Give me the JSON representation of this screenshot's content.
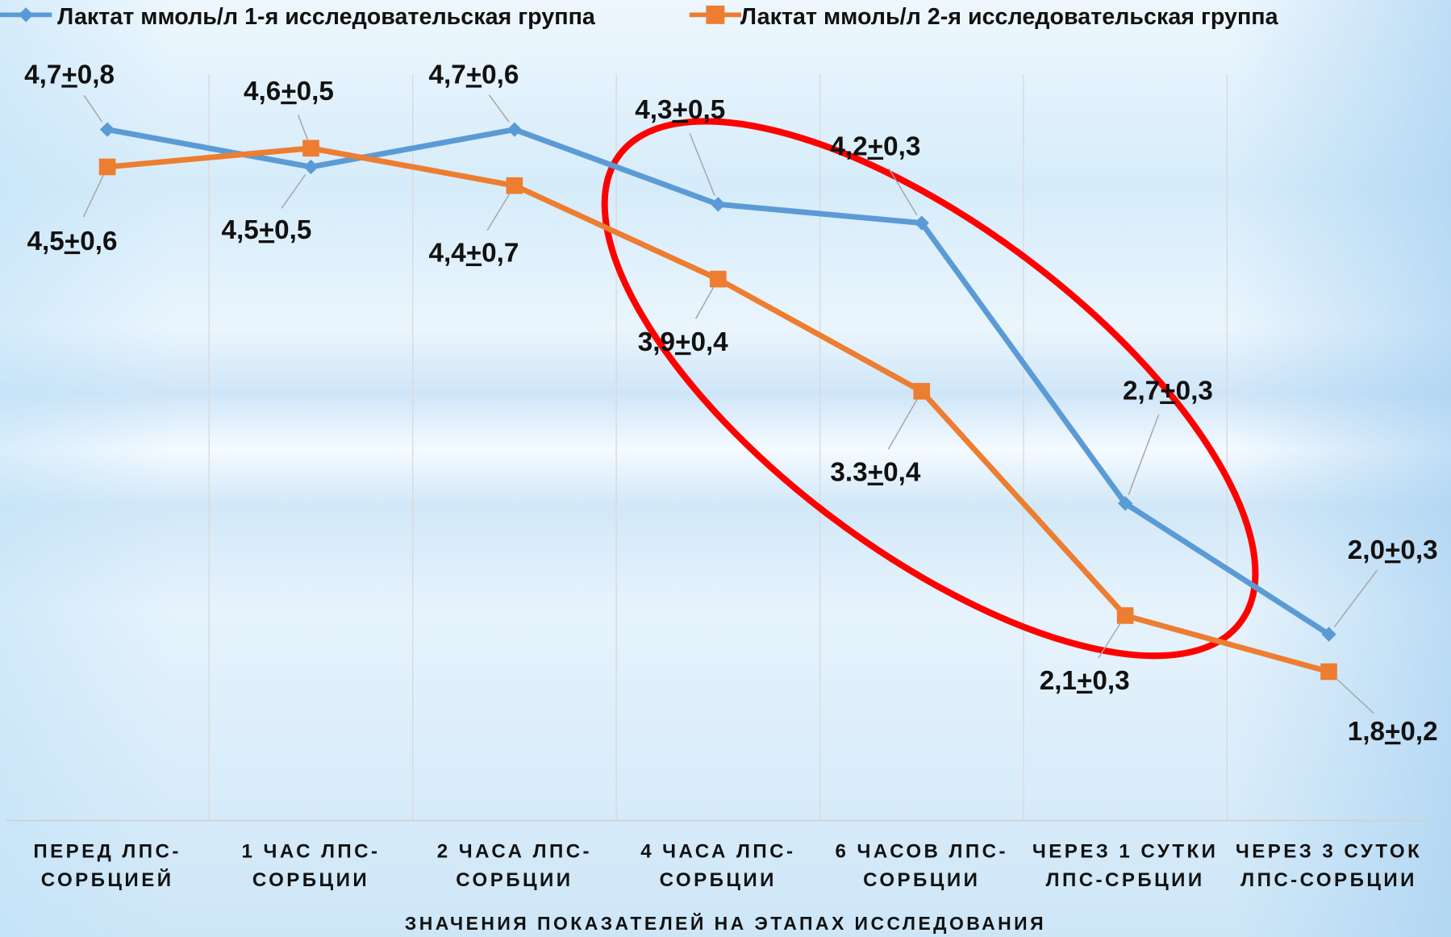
{
  "chart_data": {
    "type": "line",
    "x_label": "ЗНАЧЕНИЯ ПОКАЗАТЕЛЕЙ НА ЭТАПАХ ИССЛЕДОВАНИЯ",
    "categories": [
      "ПЕРЕД ЛПС-\nСОРБЦИЕЙ",
      "1 ЧАС ЛПС-\nСОРБЦИИ",
      "2 ЧАСА ЛПС-\nСОРБЦИИ",
      "4 ЧАСА ЛПС-\nСОРБЦИИ",
      "6 ЧАСОВ ЛПС-\nСОРБЦИИ",
      "ЧЕРЕЗ  1 СУТКИ\nЛПС-СРБЦИИ",
      "ЧЕРЕЗ 3 СУТОК\nЛПС-СОРБЦИИ"
    ],
    "series": [
      {
        "name": "Лактат ммоль/л 1-я исследовательская группа",
        "color": "#5b9bd5",
        "values": [
          4.7,
          4.5,
          4.7,
          4.3,
          4.2,
          2.7,
          2.0
        ],
        "value_labels": [
          "4,7+0,8",
          "4,5+0,5",
          "4,7+0,6",
          "4,3+0,5",
          "4,2+0,3",
          "2,7+0,3",
          "2,0+0,3"
        ]
      },
      {
        "name": "Лактат ммоль/л 2-я исследовательская группа",
        "color": "#ed7d31",
        "values": [
          4.5,
          4.6,
          4.4,
          3.9,
          3.3,
          2.1,
          1.8
        ],
        "value_labels": [
          "4,5+0,6",
          "4,6+0,5",
          "4,4+0,7",
          "3,9+0,4",
          "3.3+0,4",
          "2,1+0,3",
          "1,8+0,2"
        ]
      }
    ],
    "legend": "top",
    "grid": true
  }
}
